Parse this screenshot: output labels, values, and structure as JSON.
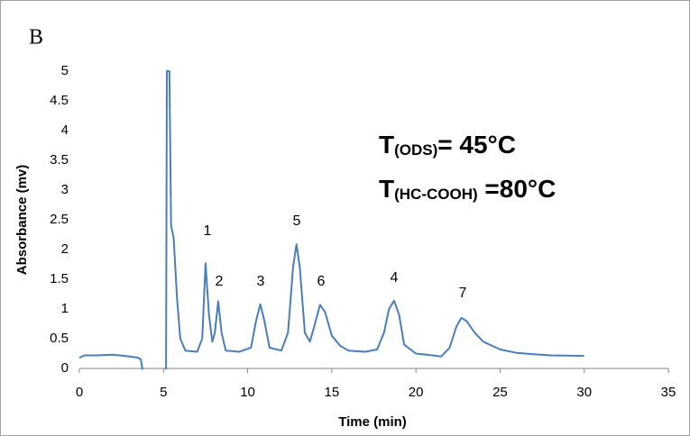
{
  "chart_data": {
    "type": "line",
    "panel_label": "B",
    "x_label": "Time (min)",
    "y_label": "Absorbance (mv)",
    "xlim": [
      0,
      35
    ],
    "xticks": [
      0,
      5,
      10,
      15,
      20,
      25,
      30,
      35
    ],
    "ylim": [
      0,
      5
    ],
    "yticks": [
      0,
      0.5,
      1,
      1.5,
      2,
      2.5,
      3,
      3.5,
      4,
      4.5,
      5
    ],
    "peak_labels": [
      "1",
      "2",
      "3",
      "5",
      "6",
      "4",
      "7"
    ],
    "conditions": [
      [
        "T",
        "(ODS)",
        "= 45°C"
      ],
      [
        "T",
        "(HC-COOH)",
        " =80°C"
      ]
    ],
    "series": [
      {
        "color": "#4a7ebb",
        "x": [
          0,
          0.3,
          1,
          2,
          3,
          3.5,
          3.65,
          3.75,
          4.5,
          5.15,
          5.2,
          5.35,
          5.45,
          5.6,
          5.8,
          6,
          6.3,
          7,
          7.3,
          7.5,
          7.7,
          7.9,
          8.05,
          8.25,
          8.45,
          8.7,
          9.5,
          10.2,
          10.5,
          10.75,
          11,
          11.3,
          12,
          12.4,
          12.7,
          12.9,
          13.1,
          13.4,
          13.7,
          14,
          14.3,
          14.6,
          15,
          15.5,
          16,
          17,
          17.7,
          18.1,
          18.4,
          18.7,
          19,
          19.3,
          20,
          21,
          21.5,
          22,
          22.4,
          22.7,
          23,
          23.5,
          24,
          25,
          26,
          27,
          28,
          30
        ],
        "values": [
          0.18,
          0.22,
          0.22,
          0.23,
          0.2,
          0.18,
          0.15,
          -0.02,
          null,
          -0.02,
          5,
          5,
          2.4,
          2.2,
          1.2,
          0.5,
          0.3,
          0.28,
          0.5,
          1.77,
          0.9,
          0.45,
          0.6,
          1.13,
          0.6,
          0.3,
          0.28,
          0.35,
          0.8,
          1.08,
          0.8,
          0.35,
          0.3,
          0.6,
          1.7,
          2.09,
          1.7,
          0.6,
          0.45,
          0.75,
          1.07,
          0.95,
          0.55,
          0.38,
          0.3,
          0.28,
          0.32,
          0.6,
          1.0,
          1.14,
          0.9,
          0.4,
          0.25,
          0.22,
          0.2,
          0.35,
          0.7,
          0.85,
          0.8,
          0.6,
          0.45,
          0.32,
          0.26,
          0.24,
          0.22,
          0.21
        ]
      }
    ]
  }
}
